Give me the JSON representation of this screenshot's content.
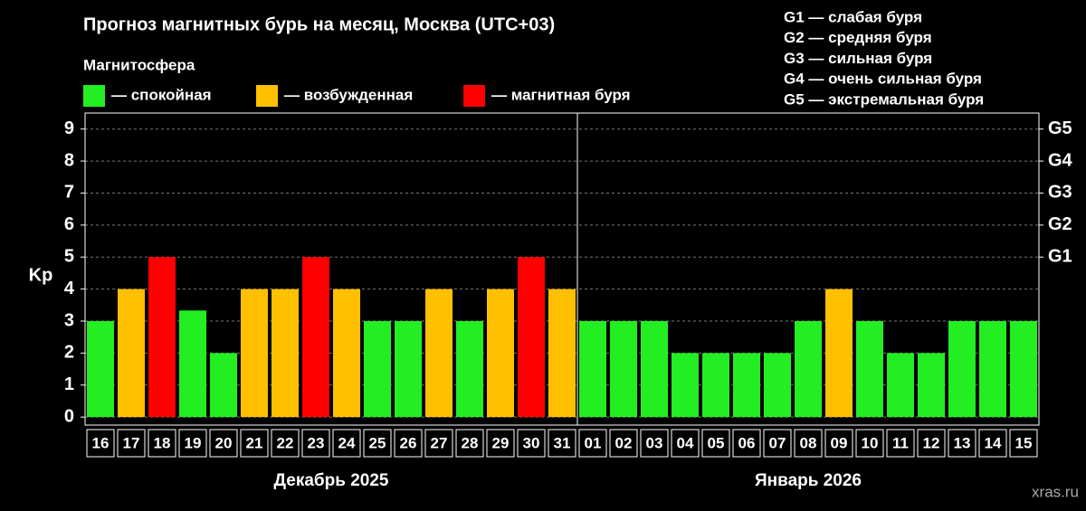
{
  "chart_data": {
    "type": "bar",
    "title": "Прогноз магнитных бурь на месяц, Москва (UTC+03)",
    "y_label": "Kp",
    "legend_title": "Магнитосфера",
    "series": [
      {
        "name": "— спокойная",
        "color": "#22ee22"
      },
      {
        "name": "— возбужденная",
        "color": "#ffc000"
      },
      {
        "name": "— магнитная буря",
        "color": "#ff0000"
      }
    ],
    "groups": [
      {
        "label": "Декабрь 2025",
        "categories": [
          "16",
          "17",
          "18",
          "19",
          "20",
          "21",
          "22",
          "23",
          "24",
          "25",
          "26",
          "27",
          "28",
          "29",
          "30",
          "31"
        ],
        "values": [
          3,
          4,
          5,
          3.33,
          2,
          4,
          4,
          5,
          4,
          3,
          3,
          4,
          3,
          4,
          5,
          4
        ],
        "colors": [
          "#22ee22",
          "#ffc000",
          "#ff0000",
          "#22ee22",
          "#22ee22",
          "#ffc000",
          "#ffc000",
          "#ff0000",
          "#ffc000",
          "#22ee22",
          "#22ee22",
          "#ffc000",
          "#22ee22",
          "#ffc000",
          "#ff0000",
          "#ffc000"
        ]
      },
      {
        "label": "Январь 2026",
        "categories": [
          "01",
          "02",
          "03",
          "04",
          "05",
          "06",
          "07",
          "08",
          "09",
          "10",
          "11",
          "12",
          "13",
          "14",
          "15"
        ],
        "values": [
          3,
          3,
          3,
          2,
          2,
          2,
          2,
          3,
          4,
          3,
          2,
          2,
          3,
          3,
          3
        ],
        "colors": [
          "#22ee22",
          "#22ee22",
          "#22ee22",
          "#22ee22",
          "#22ee22",
          "#22ee22",
          "#22ee22",
          "#22ee22",
          "#ffc000",
          "#22ee22",
          "#22ee22",
          "#22ee22",
          "#22ee22",
          "#22ee22",
          "#22ee22"
        ]
      }
    ],
    "ylim": [
      -0.25,
      9.5
    ],
    "yticks": [
      0,
      1,
      2,
      3,
      4,
      5,
      6,
      7,
      8,
      9
    ],
    "y2lim": [
      -0.25,
      9.5
    ],
    "y2ticks": [
      {
        "value": 5,
        "label": "G1"
      },
      {
        "value": 6,
        "label": "G2"
      },
      {
        "value": 7,
        "label": "G3"
      },
      {
        "value": 8,
        "label": "G4"
      },
      {
        "value": 9,
        "label": "G5"
      }
    ],
    "grid": true,
    "annotations": [
      "G1 — слабая буря",
      "G2 — средняя буря",
      "G3 — сильная буря",
      "G4 — очень сильная буря",
      "G5 — экстремальная буря"
    ],
    "source": "xras.ru"
  }
}
